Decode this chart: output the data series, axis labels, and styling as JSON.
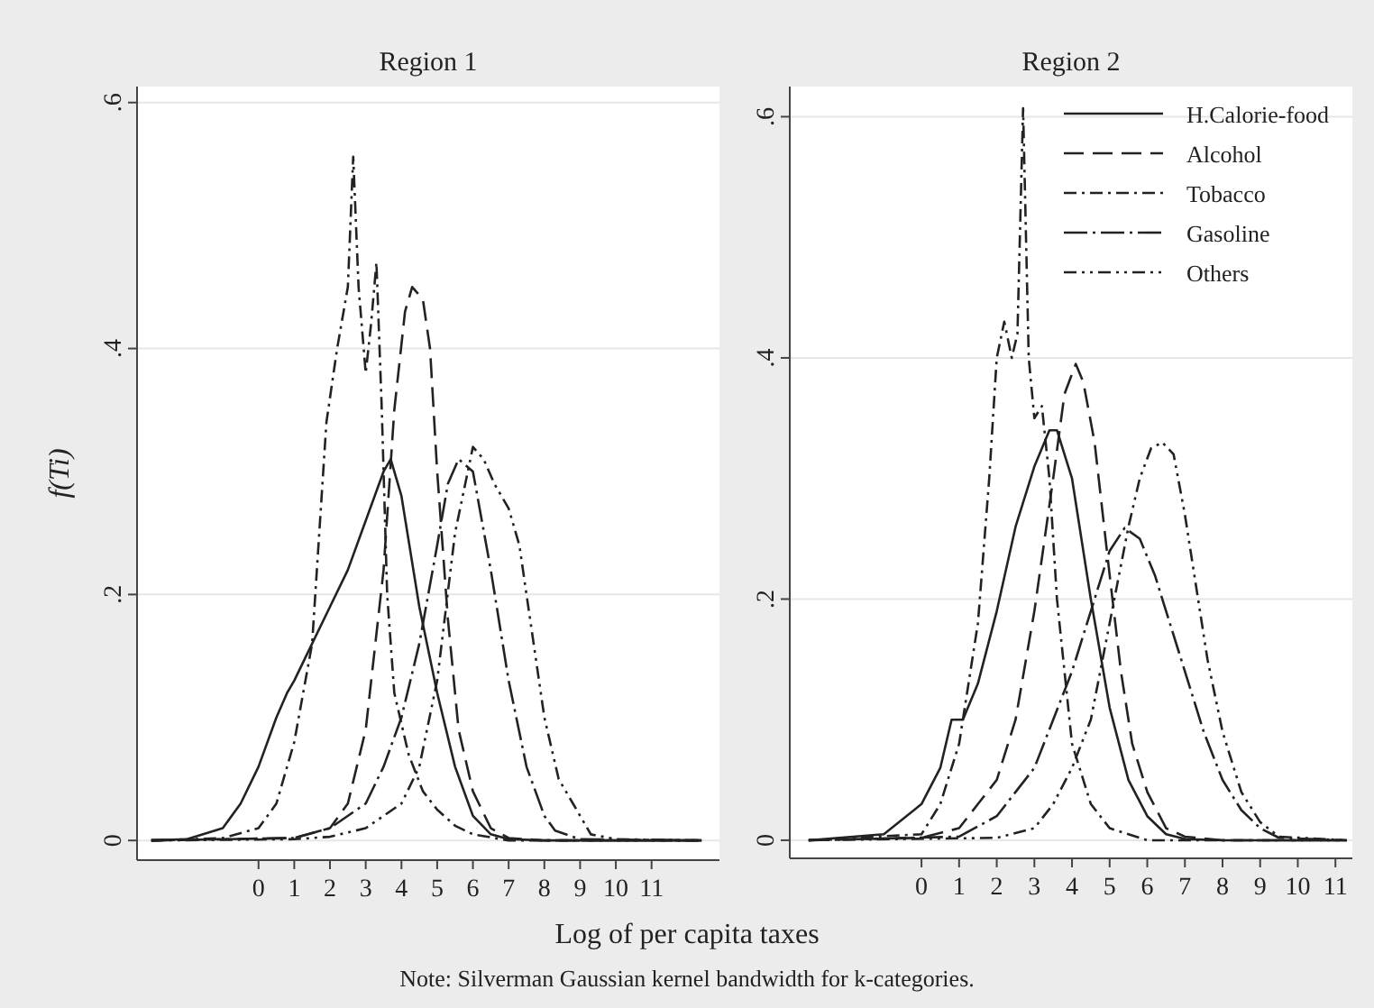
{
  "chart_data": [
    {
      "type": "line",
      "title": "Region 1",
      "xlabel": "Log of per capita taxes",
      "ylabel": "f(Ti)",
      "annotations": [
        "Note: Silverman Gaussian kernel bandwidth for k-categories."
      ],
      "xlim": [
        -3.4,
        12.9
      ],
      "xticks": [
        0,
        1,
        2,
        3,
        4,
        5,
        6,
        7,
        8,
        9,
        10,
        11
      ],
      "ylim": [
        -0.016,
        0.613
      ],
      "yticks": [
        {
          "value": 0,
          "label": "0"
        },
        {
          "value": 0.2,
          "label": ".2"
        },
        {
          "value": 0.4,
          "label": ".4"
        },
        {
          "value": 0.6,
          "label": ".6"
        }
      ],
      "grid": "y",
      "legend": false,
      "series": [
        {
          "color": "#222222",
          "line_style": "solid",
          "x": [
            -3,
            -2,
            -1,
            -0.5,
            0,
            0.5,
            0.8,
            1,
            1.5,
            2,
            2.5,
            3,
            3.5,
            3.7,
            4,
            4.5,
            5,
            5.5,
            6,
            6.5,
            7,
            8,
            10,
            12.4
          ],
          "values": [
            0,
            0.001,
            0.01,
            0.03,
            0.06,
            0.1,
            0.12,
            0.13,
            0.16,
            0.19,
            0.22,
            0.26,
            0.3,
            0.31,
            0.28,
            0.19,
            0.12,
            0.06,
            0.02,
            0.005,
            0.001,
            0,
            0,
            0
          ]
        },
        {
          "color": "#222222",
          "line_style": "dashed",
          "x": [
            -3,
            1,
            2,
            2.5,
            3,
            3.5,
            3.8,
            4.1,
            4.3,
            4.6,
            4.8,
            5,
            5.3,
            5.6,
            6,
            6.5,
            7,
            8,
            12.4
          ],
          "values": [
            0,
            0.002,
            0.01,
            0.03,
            0.09,
            0.22,
            0.35,
            0.43,
            0.45,
            0.44,
            0.4,
            0.3,
            0.18,
            0.09,
            0.04,
            0.01,
            0.002,
            0,
            0
          ]
        },
        {
          "color": "#222222",
          "line_style": "dashdot",
          "x": [
            -3,
            -1,
            0,
            0.5,
            1,
            1.5,
            1.7,
            1.9,
            2.2,
            2.5,
            2.65,
            2.8,
            3,
            3.15,
            3.3,
            3.45,
            3.6,
            3.8,
            4.2,
            4.6,
            5,
            5.5,
            6,
            7,
            12.4
          ],
          "values": [
            0,
            0.002,
            0.01,
            0.03,
            0.08,
            0.16,
            0.25,
            0.34,
            0.4,
            0.45,
            0.556,
            0.45,
            0.38,
            0.42,
            0.47,
            0.35,
            0.2,
            0.12,
            0.07,
            0.04,
            0.025,
            0.012,
            0.005,
            0,
            0
          ]
        },
        {
          "color": "#222222",
          "line_style": "longdashdot",
          "x": [
            -3,
            1,
            2,
            3,
            3.5,
            4,
            4.5,
            5,
            5.3,
            5.6,
            6,
            6.5,
            7,
            7.5,
            8,
            8.3,
            9,
            12.4
          ],
          "values": [
            0,
            0.002,
            0.01,
            0.03,
            0.06,
            0.1,
            0.16,
            0.24,
            0.29,
            0.31,
            0.3,
            0.22,
            0.13,
            0.06,
            0.02,
            0.008,
            0.001,
            0
          ]
        },
        {
          "color": "#222222",
          "line_style": "dashdotdot",
          "x": [
            -3,
            1,
            2,
            3,
            4,
            4.5,
            5,
            5.5,
            6,
            6.3,
            6.6,
            7,
            7.3,
            7.6,
            8,
            8.4,
            8.8,
            9.3,
            10,
            12.4
          ],
          "values": [
            0,
            0.001,
            0.003,
            0.01,
            0.03,
            0.06,
            0.13,
            0.25,
            0.32,
            0.31,
            0.29,
            0.27,
            0.24,
            0.18,
            0.1,
            0.05,
            0.03,
            0.005,
            0.001,
            0
          ]
        }
      ]
    },
    {
      "type": "line",
      "title": "Region 2",
      "xlim": [
        -3.5,
        11.45
      ],
      "xticks": [
        0,
        1,
        2,
        3,
        4,
        5,
        6,
        7,
        8,
        9,
        10,
        11
      ],
      "ylim": [
        -0.015,
        0.625
      ],
      "yticks": [
        {
          "value": 0,
          "label": "0"
        },
        {
          "value": 0.2,
          "label": ".2"
        },
        {
          "value": 0.4,
          "label": ".4"
        },
        {
          "value": 0.6,
          "label": ".6"
        }
      ],
      "grid": "y",
      "legend": "top right",
      "series": [
        {
          "name": "H.Calorie-food",
          "color": "#222222",
          "line_style": "solid",
          "x": [
            -3,
            -1,
            0,
            0.5,
            0.8,
            1.1,
            1.5,
            2,
            2.5,
            3,
            3.4,
            3.6,
            4,
            4.5,
            5,
            5.5,
            6,
            6.5,
            7,
            8,
            11.3
          ],
          "values": [
            0,
            0.005,
            0.03,
            0.06,
            0.1,
            0.1,
            0.13,
            0.19,
            0.26,
            0.31,
            0.34,
            0.34,
            0.3,
            0.2,
            0.11,
            0.05,
            0.02,
            0.005,
            0.001,
            0,
            0
          ]
        },
        {
          "name": "Alcohol",
          "color": "#222222",
          "line_style": "dashed",
          "x": [
            -3,
            0,
            1,
            1.5,
            2,
            2.5,
            3,
            3.5,
            3.8,
            4.1,
            4.3,
            4.6,
            5,
            5.3,
            5.6,
            6,
            6.5,
            7,
            8,
            11.3
          ],
          "values": [
            0,
            0.002,
            0.01,
            0.03,
            0.05,
            0.1,
            0.19,
            0.3,
            0.37,
            0.395,
            0.38,
            0.33,
            0.22,
            0.14,
            0.08,
            0.04,
            0.01,
            0.003,
            0,
            0
          ]
        },
        {
          "name": "Tobacco",
          "color": "#222222",
          "line_style": "dashdot",
          "x": [
            -3,
            0,
            0.5,
            1,
            1.5,
            1.8,
            2,
            2.2,
            2.4,
            2.55,
            2.7,
            2.85,
            3,
            3.2,
            3.4,
            3.6,
            4,
            4.5,
            5,
            6,
            11.3
          ],
          "values": [
            0,
            0.005,
            0.03,
            0.08,
            0.18,
            0.3,
            0.4,
            0.43,
            0.4,
            0.42,
            0.607,
            0.4,
            0.35,
            0.36,
            0.3,
            0.2,
            0.08,
            0.03,
            0.01,
            0,
            0
          ]
        },
        {
          "name": "Gasoline",
          "color": "#222222",
          "line_style": "longdashdot",
          "x": [
            -3,
            1,
            2,
            3,
            3.5,
            4,
            4.5,
            5,
            5.4,
            5.8,
            6.2,
            6.6,
            7,
            7.5,
            8,
            8.5,
            9,
            9.5,
            11.3
          ],
          "values": [
            0,
            0.003,
            0.02,
            0.06,
            0.1,
            0.14,
            0.19,
            0.24,
            0.259,
            0.25,
            0.22,
            0.18,
            0.14,
            0.09,
            0.05,
            0.025,
            0.01,
            0.002,
            0
          ]
        },
        {
          "name": "Others",
          "color": "#222222",
          "line_style": "dashdotdot",
          "x": [
            -3,
            2,
            3,
            3.5,
            4,
            4.5,
            5,
            5.5,
            5.8,
            6.1,
            6.4,
            6.7,
            7,
            7.3,
            7.6,
            8,
            8.5,
            9,
            9.5,
            11.3
          ],
          "values": [
            0,
            0.002,
            0.01,
            0.03,
            0.06,
            0.1,
            0.18,
            0.26,
            0.3,
            0.325,
            0.33,
            0.32,
            0.27,
            0.21,
            0.15,
            0.09,
            0.04,
            0.015,
            0.003,
            0
          ]
        }
      ]
    }
  ]
}
